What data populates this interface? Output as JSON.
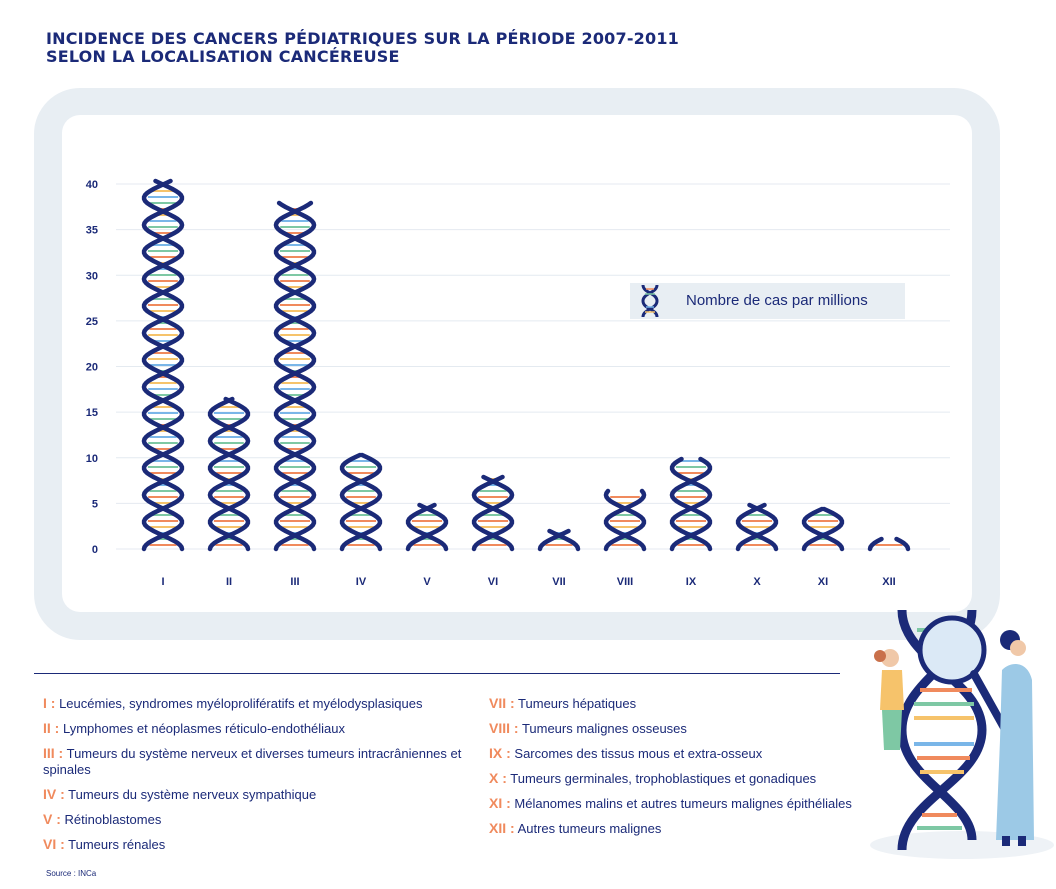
{
  "title_line1": "INCIDENCE DES CANCERS PÉDIATRIQUES SUR LA PÉRIODE 2007-2011",
  "title_line2": "SELON LA LOCALISATION CANCÉREUSE",
  "legend_label": "Nombre de cas par millions",
  "source": "Source : INCa",
  "colors": {
    "navy": "#1b2a78",
    "orange": "#f08a5d",
    "frame": "#e8eef3",
    "rung_colors": [
      "#f08a5d",
      "#7ec8a4",
      "#7ab6e8",
      "#f6c36b"
    ]
  },
  "chart_data": {
    "type": "bar",
    "categories": [
      "I",
      "II",
      "III",
      "IV",
      "V",
      "VI",
      "VII",
      "VIII",
      "IX",
      "X",
      "XI",
      "XII"
    ],
    "values": [
      40.5,
      16.5,
      38,
      10.5,
      5,
      8,
      2,
      6.5,
      10,
      5,
      4.5,
      1.2
    ],
    "ylim": [
      0,
      40
    ],
    "yticks": [
      0,
      5,
      10,
      15,
      20,
      25,
      30,
      35,
      40
    ],
    "grid": true,
    "legend": "top-right"
  },
  "key_left": [
    {
      "num": "I :",
      "text": "Leucémies, syndromes myéloprolifératifs et myélodysplasiques"
    },
    {
      "num": "II :",
      "text": "Lymphomes et néoplasmes réticulo-endothéliaux"
    },
    {
      "num": "III :",
      "text": "Tumeurs du système nerveux et diverses tumeurs intracrâniennes et spinales"
    },
    {
      "num": "IV :",
      "text": "Tumeurs du système nerveux sympathique"
    },
    {
      "num": "V :",
      "text": "Rétinoblastomes"
    },
    {
      "num": "VI :",
      "text": "Tumeurs rénales"
    }
  ],
  "key_right": [
    {
      "num": "VII :",
      "text": "Tumeurs hépatiques"
    },
    {
      "num": "VIII :",
      "text": "Tumeurs malignes osseuses"
    },
    {
      "num": "IX :",
      "text": "Sarcomes des tissus mous et extra-osseux"
    },
    {
      "num": "X :",
      "text": "Tumeurs germinales, trophoblastiques et gonadiques"
    },
    {
      "num": "XI :",
      "text": "Mélanomes malins et autres tumeurs malignes épithéliales"
    },
    {
      "num": "XII :",
      "text": "Autres tumeurs malignes"
    }
  ]
}
